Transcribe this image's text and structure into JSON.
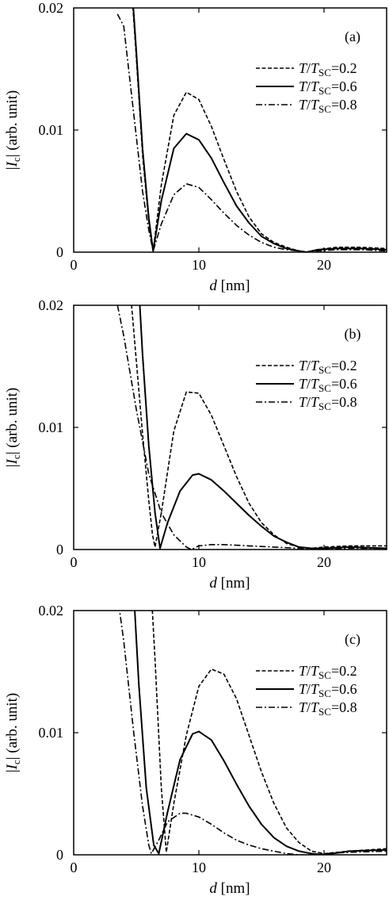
{
  "figure": {
    "xlabel_var": "d",
    "xlabel_unit": " [nm]",
    "ylabel_main": "|",
    "ylabel_var": "I",
    "ylabel_sub": "c",
    "ylabel_tail": "| (arb. unit)",
    "legend": {
      "var": "T",
      "slash": "/",
      "sub": "SC",
      "entries": [
        "=0.2",
        "=0.6",
        "=0.8"
      ]
    }
  },
  "chart_data": [
    {
      "type": "line",
      "panel_label": "(a)",
      "xlim": [
        0,
        25
      ],
      "ylim": [
        0,
        0.02
      ],
      "x_ticks": [
        "0",
        "10",
        "20"
      ],
      "y_ticks": [
        "0",
        "0.01",
        "0.02"
      ],
      "series": [
        {
          "name": "T/TSC=0.2",
          "style": "dashed",
          "x": [
            4.5,
            5.0,
            5.5,
            6.0,
            6.35,
            7.0,
            8.0,
            9.0,
            10.0,
            11.0,
            12.0,
            13.0,
            14.0,
            15.0,
            16.0,
            17.0,
            18.0,
            18.6,
            19.5,
            21.0,
            22.0,
            23.0,
            25.0
          ],
          "y": [
            0.0235,
            0.016,
            0.008,
            0.0025,
            0.0001,
            0.0055,
            0.0112,
            0.0131,
            0.0125,
            0.0103,
            0.0076,
            0.005,
            0.0029,
            0.0015,
            0.0008,
            0.0004,
            0.0001,
            0.0,
            0.0002,
            0.0004,
            0.0004,
            0.0004,
            0.0003
          ]
        },
        {
          "name": "T/TSC=0.6",
          "style": "solid",
          "x": [
            4.5,
            5.0,
            5.5,
            6.0,
            6.35,
            7.0,
            8.0,
            9.0,
            10.0,
            11.0,
            12.0,
            13.0,
            14.0,
            15.0,
            16.0,
            17.0,
            18.0,
            18.6,
            19.5,
            21.0,
            22.0,
            23.0,
            25.0
          ],
          "y": [
            0.024,
            0.0165,
            0.0085,
            0.0028,
            0.0001,
            0.0042,
            0.0085,
            0.0097,
            0.0092,
            0.0077,
            0.0057,
            0.0038,
            0.0024,
            0.0013,
            0.0007,
            0.0003,
            0.0001,
            0.0,
            0.0002,
            0.0003,
            0.0003,
            0.0003,
            0.0002
          ]
        },
        {
          "name": "T/TSC=0.8",
          "style": "dashdot",
          "x": [
            3.5,
            4.0,
            4.5,
            5.0,
            5.5,
            6.0,
            6.35,
            7.0,
            8.0,
            9.0,
            10.0,
            11.0,
            12.0,
            13.0,
            14.0,
            15.0,
            16.0,
            17.0,
            18.0,
            18.6,
            19.5,
            21.0,
            22.0,
            23.0,
            25.0
          ],
          "y": [
            0.0195,
            0.0185,
            0.014,
            0.0095,
            0.005,
            0.0018,
            0.0001,
            0.0023,
            0.0047,
            0.0056,
            0.0053,
            0.0043,
            0.0032,
            0.0022,
            0.0014,
            0.0008,
            0.0004,
            0.0002,
            0.0001,
            0.0,
            0.0001,
            0.0002,
            0.0002,
            0.0002,
            0.0001
          ]
        }
      ]
    },
    {
      "type": "line",
      "panel_label": "(b)",
      "xlim": [
        0,
        25
      ],
      "ylim": [
        0,
        0.02
      ],
      "x_ticks": [
        "0",
        "10",
        "20"
      ],
      "y_ticks": [
        "0",
        "0.01",
        "0.02"
      ],
      "series": [
        {
          "name": "T/TSC=0.2",
          "style": "dashed",
          "x": [
            4.5,
            5.0,
            5.5,
            6.0,
            6.3,
            6.5,
            7.0,
            8.0,
            9.0,
            10.0,
            11.0,
            12.0,
            13.0,
            14.0,
            15.0,
            16.0,
            17.0,
            18.0,
            19.0,
            20.0,
            22.0,
            25.0
          ],
          "y": [
            0.0215,
            0.0155,
            0.0095,
            0.004,
            0.0012,
            0.0002,
            0.003,
            0.0097,
            0.0129,
            0.0128,
            0.011,
            0.0085,
            0.006,
            0.0038,
            0.0022,
            0.0012,
            0.0005,
            0.0002,
            0.0001,
            0.0002,
            0.0003,
            0.0003
          ]
        },
        {
          "name": "T/TSC=0.6",
          "style": "solid",
          "x": [
            5.2,
            5.5,
            6.0,
            6.5,
            6.9,
            7.5,
            8.5,
            9.5,
            10.0,
            11.0,
            12.0,
            13.0,
            14.0,
            15.0,
            16.0,
            17.0,
            18.0,
            19.0,
            20.0,
            22.0,
            25.0
          ],
          "y": [
            0.0215,
            0.016,
            0.0085,
            0.003,
            0.0001,
            0.0022,
            0.0048,
            0.0061,
            0.0062,
            0.0057,
            0.0048,
            0.0038,
            0.0028,
            0.0019,
            0.0011,
            0.0006,
            0.0002,
            0.0001,
            0.0001,
            0.0002,
            0.0001
          ]
        },
        {
          "name": "T/TSC=0.8",
          "style": "dashdot",
          "x": [
            3.5,
            4.0,
            5.0,
            6.0,
            7.0,
            8.0,
            9.0,
            9.4,
            10.0,
            11.0,
            12.0,
            14.0,
            16.0,
            18.0,
            20.0,
            22.0,
            25.0
          ],
          "y": [
            0.02,
            0.0175,
            0.0115,
            0.0062,
            0.003,
            0.0012,
            0.0002,
            0.0,
            0.0003,
            0.0004,
            0.0004,
            0.0003,
            0.0002,
            0.0001,
            0.0,
            0.0001,
            0.0001
          ]
        }
      ]
    },
    {
      "type": "line",
      "panel_label": "(c)",
      "xlim": [
        0,
        25
      ],
      "ylim": [
        0,
        0.02
      ],
      "x_ticks": [
        "0",
        "10",
        "20"
      ],
      "y_ticks": [
        "0",
        "0.01",
        "0.02"
      ],
      "series": [
        {
          "name": "T/TSC=0.2",
          "style": "dashed",
          "x": [
            6.2,
            6.5,
            7.0,
            7.4,
            8.0,
            9.0,
            10.0,
            11.0,
            12.0,
            13.0,
            14.0,
            15.0,
            16.0,
            17.0,
            18.0,
            19.0,
            20.0,
            22.0,
            25.0
          ],
          "y": [
            0.0215,
            0.016,
            0.0055,
            0.0002,
            0.0042,
            0.0098,
            0.0138,
            0.0152,
            0.0148,
            0.0128,
            0.0098,
            0.0068,
            0.0042,
            0.0022,
            0.001,
            0.0003,
            0.0001,
            0.0003,
            0.0005
          ]
        },
        {
          "name": "T/TSC=0.6",
          "style": "solid",
          "x": [
            4.8,
            5.2,
            5.8,
            6.4,
            6.8,
            7.5,
            8.5,
            9.5,
            10.0,
            11.0,
            12.0,
            13.0,
            14.0,
            15.0,
            16.0,
            17.0,
            18.0,
            19.0,
            20.0,
            22.0,
            25.0
          ],
          "y": [
            0.0215,
            0.014,
            0.0055,
            0.0008,
            0.0001,
            0.0035,
            0.0078,
            0.0099,
            0.0101,
            0.0094,
            0.0077,
            0.0058,
            0.004,
            0.0025,
            0.0014,
            0.0007,
            0.0003,
            0.0001,
            0.0,
            0.0003,
            0.0004
          ]
        },
        {
          "name": "T/TSC=0.8",
          "style": "dashdot",
          "x": [
            3.6,
            4.0,
            4.8,
            5.5,
            6.0,
            6.2,
            6.8,
            7.5,
            8.5,
            9.0,
            10.0,
            11.0,
            12.0,
            13.0,
            14.0,
            15.0,
            16.0,
            17.0,
            18.0,
            19.0,
            20.0,
            22.0,
            25.0
          ],
          "y": [
            0.0205,
            0.0175,
            0.01,
            0.004,
            0.0008,
            0.0001,
            0.0012,
            0.0027,
            0.0034,
            0.0034,
            0.0031,
            0.0025,
            0.0018,
            0.0012,
            0.0008,
            0.0005,
            0.0003,
            0.0001,
            0.0,
            0.0,
            0.0001,
            0.0002,
            0.0003
          ]
        }
      ]
    }
  ]
}
